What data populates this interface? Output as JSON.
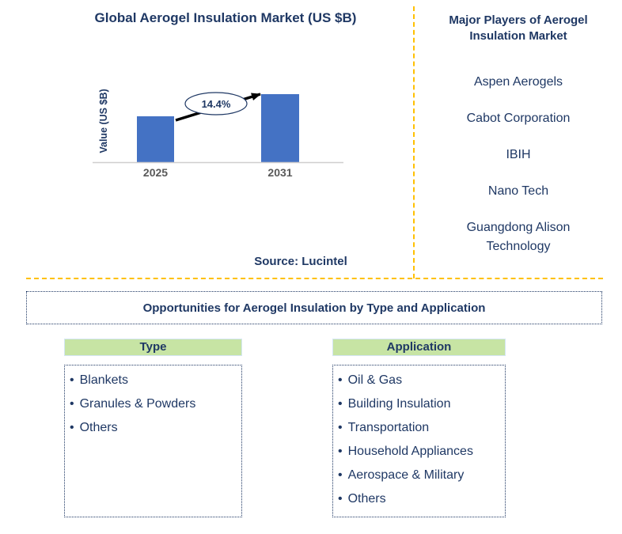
{
  "colors": {
    "navy_text": "#1F3864",
    "divider_gold": "#FFC000",
    "header_green": "#C7E4A4",
    "bar_blue": "#4472C4",
    "tick_gray": "#595959",
    "axis_line": "#D0CECE",
    "arrow_black": "#000000"
  },
  "chart_data": {
    "type": "bar",
    "title": "Global Aerogel Insulation Market (US $B)",
    "ylabel": "Value (US $B)",
    "xlabel": "",
    "categories": [
      "2025",
      "2031"
    ],
    "values_relative": [
      0.67,
      1.0
    ],
    "annotation_cagr": "14.4%",
    "source": "Source: Lucintel",
    "legend": false,
    "gridlines": false
  },
  "major_players": {
    "title": "Major Players of Aerogel Insulation Market",
    "items": [
      "Aspen Aerogels",
      "Cabot Corporation",
      "IBIH",
      "Nano Tech",
      "Guangdong Alison Technology"
    ]
  },
  "opportunities": {
    "title": "Opportunities for Aerogel Insulation by Type and Application",
    "columns": [
      {
        "header": "Type",
        "items": [
          "Blankets",
          "Granules & Powders",
          "Others"
        ]
      },
      {
        "header": "Application",
        "items": [
          "Oil & Gas",
          "Building Insulation",
          "Transportation",
          "Household Appliances",
          "Aerospace & Military",
          "Others"
        ]
      }
    ]
  }
}
